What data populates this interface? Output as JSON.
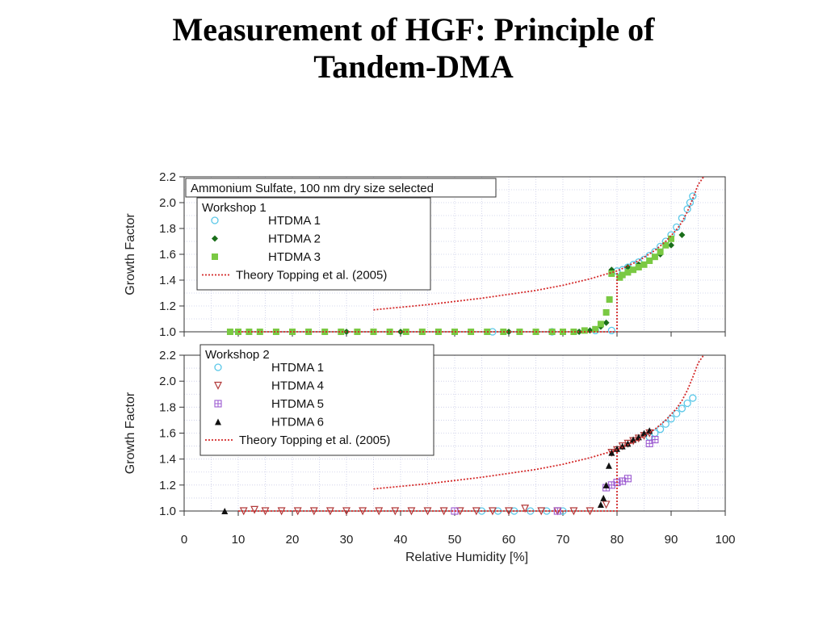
{
  "slide": {
    "title_line1": "Measurement of HGF: Principle of",
    "title_line2": "Tandem-DMA"
  },
  "chart_data": [
    {
      "type": "scatter",
      "title": "Ammonium Sulfate, 100 nm dry size selected",
      "xlabel": "",
      "ylabel": "Growth Factor",
      "xlim": [
        0,
        100
      ],
      "ylim": [
        1.0,
        2.2
      ],
      "yticks": [
        "1.0",
        "1.2",
        "1.4",
        "1.6",
        "1.8",
        "2.0",
        "2.2"
      ],
      "grid": true,
      "legend_title": "Workshop 1",
      "legend_position": "top-left",
      "series": [
        {
          "name": "HTDMA 1",
          "marker": "circle-open",
          "color": "#5bc8e8",
          "x": [
            57,
            68,
            76,
            79,
            80,
            81,
            82,
            83,
            84,
            85,
            86,
            87,
            88,
            89,
            90,
            91,
            92,
            93,
            93.5,
            94
          ],
          "y": [
            1.0,
            1.0,
            1.01,
            1.01,
            1.47,
            1.48,
            1.5,
            1.52,
            1.54,
            1.56,
            1.59,
            1.62,
            1.66,
            1.7,
            1.75,
            1.81,
            1.88,
            1.95,
            2.0,
            2.05
          ]
        },
        {
          "name": "HTDMA 2",
          "marker": "diamond",
          "color": "#1a6e1a",
          "x": [
            10,
            20,
            30,
            40,
            50,
            60,
            70,
            73,
            75,
            76,
            77,
            78,
            79,
            82,
            84,
            86,
            88,
            90,
            92
          ],
          "y": [
            1.0,
            1.0,
            1.0,
            1.0,
            1.0,
            1.0,
            1.0,
            1.0,
            1.01,
            1.02,
            1.04,
            1.07,
            1.48,
            1.5,
            1.52,
            1.55,
            1.6,
            1.67,
            1.75
          ]
        },
        {
          "name": "HTDMA 3",
          "marker": "square",
          "color": "#7ac943",
          "x": [
            8.5,
            10,
            12,
            14,
            17,
            20,
            23,
            26,
            29,
            32,
            35,
            38,
            41,
            44,
            47,
            50,
            53,
            56,
            59,
            62,
            65,
            68,
            70,
            72,
            74,
            76,
            77,
            78,
            78.6,
            79,
            80.5,
            81,
            82,
            83,
            84,
            85,
            86,
            87,
            88,
            89,
            90
          ],
          "y": [
            1.0,
            1.0,
            1.0,
            1.0,
            1.0,
            1.0,
            1.0,
            1.0,
            1.0,
            1.0,
            1.0,
            1.0,
            1.0,
            1.0,
            1.0,
            1.0,
            1.0,
            1.0,
            1.0,
            1.0,
            1.0,
            1.0,
            1.0,
            1.0,
            1.01,
            1.02,
            1.06,
            1.15,
            1.25,
            1.45,
            1.42,
            1.44,
            1.46,
            1.48,
            1.5,
            1.52,
            1.55,
            1.58,
            1.62,
            1.67,
            1.72
          ]
        },
        {
          "name": "Theory Topping et al. (2005)",
          "marker": "dotted-line",
          "color": "#d42a2a",
          "x": [
            35,
            40,
            45,
            50,
            55,
            60,
            65,
            70,
            75,
            79.9,
            81,
            84,
            87,
            89,
            91,
            92,
            93,
            94,
            95,
            96
          ],
          "y": [
            1.17,
            1.19,
            1.21,
            1.235,
            1.26,
            1.29,
            1.32,
            1.36,
            1.41,
            1.47,
            1.49,
            1.55,
            1.63,
            1.7,
            1.79,
            1.85,
            1.93,
            2.03,
            2.14,
            2.22
          ],
          "step": {
            "x_start": 10,
            "x_jump": 80,
            "low": 1.0,
            "high": 1.47
          }
        }
      ]
    },
    {
      "type": "scatter",
      "title": "",
      "xlabel": "Relative Humidity [%]",
      "ylabel": "Growth Factor",
      "xlim": [
        0,
        100
      ],
      "ylim": [
        1.0,
        2.2
      ],
      "xticks": [
        "0",
        "10",
        "20",
        "30",
        "40",
        "50",
        "60",
        "70",
        "80",
        "90",
        "100"
      ],
      "yticks": [
        "1.0",
        "1.2",
        "1.4",
        "1.6",
        "1.8",
        "2.0",
        "2.2"
      ],
      "grid": true,
      "legend_title": "Workshop 2",
      "legend_position": "top-left",
      "series": [
        {
          "name": "HTDMA 1",
          "marker": "circle-open",
          "color": "#5bc8e8",
          "x": [
            55,
            58,
            61,
            64,
            67,
            70,
            86,
            87,
            88,
            89,
            90,
            91,
            92,
            93,
            94
          ],
          "y": [
            1.0,
            1.0,
            1.0,
            1.0,
            1.0,
            1.0,
            1.57,
            1.6,
            1.63,
            1.67,
            1.71,
            1.75,
            1.79,
            1.83,
            1.87
          ]
        },
        {
          "name": "HTDMA 4",
          "marker": "triangle-down-open",
          "color": "#b23a3a",
          "x": [
            11,
            13,
            15,
            18,
            21,
            24,
            27,
            30,
            33,
            36,
            39,
            42,
            45,
            48,
            51,
            54,
            57,
            60,
            63,
            66,
            69,
            72,
            75,
            78,
            79,
            80,
            81,
            82,
            83,
            84,
            85,
            86
          ],
          "y": [
            1.0,
            1.01,
            1.0,
            1.0,
            1.0,
            1.0,
            1.0,
            1.0,
            1.0,
            1.0,
            1.0,
            1.0,
            1.0,
            1.0,
            1.0,
            1.0,
            1.0,
            1.0,
            1.02,
            1.0,
            1.0,
            1.0,
            1.0,
            1.05,
            1.45,
            1.47,
            1.5,
            1.52,
            1.54,
            1.56,
            1.58,
            1.6
          ]
        },
        {
          "name": "HTDMA 5",
          "marker": "square-plus-open",
          "color": "#9b59d0",
          "x": [
            50,
            69,
            78,
            79,
            80,
            81,
            82,
            86,
            87
          ],
          "y": [
            1.0,
            1.0,
            1.18,
            1.2,
            1.22,
            1.23,
            1.25,
            1.52,
            1.55
          ]
        },
        {
          "name": "HTDMA 6",
          "marker": "triangle",
          "color": "#111111",
          "x": [
            7.5,
            77,
            77.5,
            78,
            78.5,
            79,
            80,
            81,
            82,
            83,
            84,
            85,
            86
          ],
          "y": [
            1.0,
            1.05,
            1.1,
            1.2,
            1.35,
            1.45,
            1.48,
            1.5,
            1.52,
            1.55,
            1.57,
            1.6,
            1.62
          ]
        },
        {
          "name": "Theory Topping et al. (2005)",
          "marker": "dotted-line",
          "color": "#d42a2a",
          "x": [
            35,
            40,
            45,
            50,
            55,
            60,
            65,
            70,
            75,
            79.9,
            81,
            84,
            87,
            89,
            91,
            92,
            93,
            94,
            95,
            96
          ],
          "y": [
            1.17,
            1.19,
            1.21,
            1.235,
            1.26,
            1.29,
            1.32,
            1.36,
            1.41,
            1.47,
            1.49,
            1.55,
            1.63,
            1.7,
            1.79,
            1.85,
            1.93,
            2.03,
            2.14,
            2.22
          ],
          "step": {
            "x_start": 10,
            "x_jump": 80,
            "low": 1.0,
            "high": 1.47
          }
        }
      ]
    }
  ]
}
